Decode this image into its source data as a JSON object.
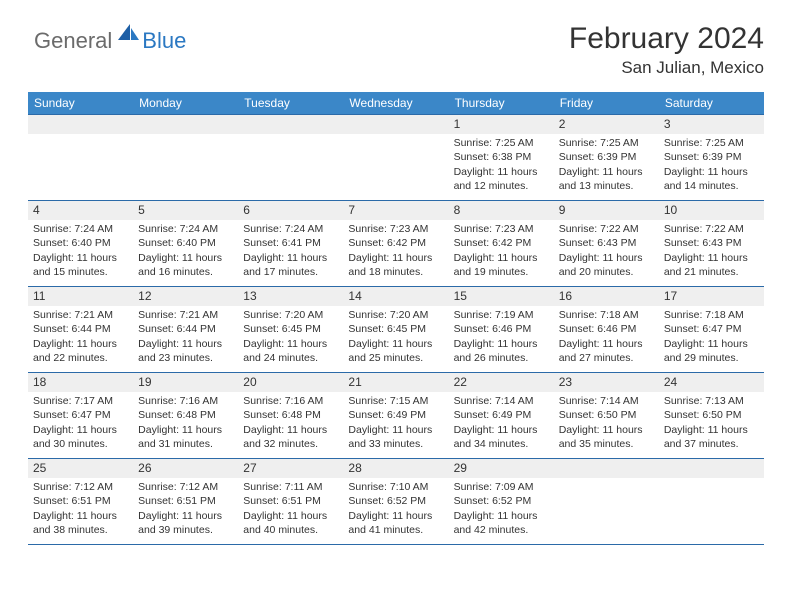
{
  "colors": {
    "header_bg": "#3b87c8",
    "header_text": "#ffffff",
    "row_divider": "#2b6aa8",
    "daynum_bg": "#efefef",
    "body_text": "#333333",
    "logo_gray": "#6b6b6b",
    "logo_blue": "#2b78c2"
  },
  "logo": {
    "part1": "General",
    "part2": "Blue"
  },
  "title": "February 2024",
  "location": "San Julian, Mexico",
  "weekdays": [
    "Sunday",
    "Monday",
    "Tuesday",
    "Wednesday",
    "Thursday",
    "Friday",
    "Saturday"
  ],
  "weeks": [
    [
      null,
      null,
      null,
      null,
      {
        "n": "1",
        "sunrise": "Sunrise: 7:25 AM",
        "sunset": "Sunset: 6:38 PM",
        "day1": "Daylight: 11 hours",
        "day2": "and 12 minutes."
      },
      {
        "n": "2",
        "sunrise": "Sunrise: 7:25 AM",
        "sunset": "Sunset: 6:39 PM",
        "day1": "Daylight: 11 hours",
        "day2": "and 13 minutes."
      },
      {
        "n": "3",
        "sunrise": "Sunrise: 7:25 AM",
        "sunset": "Sunset: 6:39 PM",
        "day1": "Daylight: 11 hours",
        "day2": "and 14 minutes."
      }
    ],
    [
      {
        "n": "4",
        "sunrise": "Sunrise: 7:24 AM",
        "sunset": "Sunset: 6:40 PM",
        "day1": "Daylight: 11 hours",
        "day2": "and 15 minutes."
      },
      {
        "n": "5",
        "sunrise": "Sunrise: 7:24 AM",
        "sunset": "Sunset: 6:40 PM",
        "day1": "Daylight: 11 hours",
        "day2": "and 16 minutes."
      },
      {
        "n": "6",
        "sunrise": "Sunrise: 7:24 AM",
        "sunset": "Sunset: 6:41 PM",
        "day1": "Daylight: 11 hours",
        "day2": "and 17 minutes."
      },
      {
        "n": "7",
        "sunrise": "Sunrise: 7:23 AM",
        "sunset": "Sunset: 6:42 PM",
        "day1": "Daylight: 11 hours",
        "day2": "and 18 minutes."
      },
      {
        "n": "8",
        "sunrise": "Sunrise: 7:23 AM",
        "sunset": "Sunset: 6:42 PM",
        "day1": "Daylight: 11 hours",
        "day2": "and 19 minutes."
      },
      {
        "n": "9",
        "sunrise": "Sunrise: 7:22 AM",
        "sunset": "Sunset: 6:43 PM",
        "day1": "Daylight: 11 hours",
        "day2": "and 20 minutes."
      },
      {
        "n": "10",
        "sunrise": "Sunrise: 7:22 AM",
        "sunset": "Sunset: 6:43 PM",
        "day1": "Daylight: 11 hours",
        "day2": "and 21 minutes."
      }
    ],
    [
      {
        "n": "11",
        "sunrise": "Sunrise: 7:21 AM",
        "sunset": "Sunset: 6:44 PM",
        "day1": "Daylight: 11 hours",
        "day2": "and 22 minutes."
      },
      {
        "n": "12",
        "sunrise": "Sunrise: 7:21 AM",
        "sunset": "Sunset: 6:44 PM",
        "day1": "Daylight: 11 hours",
        "day2": "and 23 minutes."
      },
      {
        "n": "13",
        "sunrise": "Sunrise: 7:20 AM",
        "sunset": "Sunset: 6:45 PM",
        "day1": "Daylight: 11 hours",
        "day2": "and 24 minutes."
      },
      {
        "n": "14",
        "sunrise": "Sunrise: 7:20 AM",
        "sunset": "Sunset: 6:45 PM",
        "day1": "Daylight: 11 hours",
        "day2": "and 25 minutes."
      },
      {
        "n": "15",
        "sunrise": "Sunrise: 7:19 AM",
        "sunset": "Sunset: 6:46 PM",
        "day1": "Daylight: 11 hours",
        "day2": "and 26 minutes."
      },
      {
        "n": "16",
        "sunrise": "Sunrise: 7:18 AM",
        "sunset": "Sunset: 6:46 PM",
        "day1": "Daylight: 11 hours",
        "day2": "and 27 minutes."
      },
      {
        "n": "17",
        "sunrise": "Sunrise: 7:18 AM",
        "sunset": "Sunset: 6:47 PM",
        "day1": "Daylight: 11 hours",
        "day2": "and 29 minutes."
      }
    ],
    [
      {
        "n": "18",
        "sunrise": "Sunrise: 7:17 AM",
        "sunset": "Sunset: 6:47 PM",
        "day1": "Daylight: 11 hours",
        "day2": "and 30 minutes."
      },
      {
        "n": "19",
        "sunrise": "Sunrise: 7:16 AM",
        "sunset": "Sunset: 6:48 PM",
        "day1": "Daylight: 11 hours",
        "day2": "and 31 minutes."
      },
      {
        "n": "20",
        "sunrise": "Sunrise: 7:16 AM",
        "sunset": "Sunset: 6:48 PM",
        "day1": "Daylight: 11 hours",
        "day2": "and 32 minutes."
      },
      {
        "n": "21",
        "sunrise": "Sunrise: 7:15 AM",
        "sunset": "Sunset: 6:49 PM",
        "day1": "Daylight: 11 hours",
        "day2": "and 33 minutes."
      },
      {
        "n": "22",
        "sunrise": "Sunrise: 7:14 AM",
        "sunset": "Sunset: 6:49 PM",
        "day1": "Daylight: 11 hours",
        "day2": "and 34 minutes."
      },
      {
        "n": "23",
        "sunrise": "Sunrise: 7:14 AM",
        "sunset": "Sunset: 6:50 PM",
        "day1": "Daylight: 11 hours",
        "day2": "and 35 minutes."
      },
      {
        "n": "24",
        "sunrise": "Sunrise: 7:13 AM",
        "sunset": "Sunset: 6:50 PM",
        "day1": "Daylight: 11 hours",
        "day2": "and 37 minutes."
      }
    ],
    [
      {
        "n": "25",
        "sunrise": "Sunrise: 7:12 AM",
        "sunset": "Sunset: 6:51 PM",
        "day1": "Daylight: 11 hours",
        "day2": "and 38 minutes."
      },
      {
        "n": "26",
        "sunrise": "Sunrise: 7:12 AM",
        "sunset": "Sunset: 6:51 PM",
        "day1": "Daylight: 11 hours",
        "day2": "and 39 minutes."
      },
      {
        "n": "27",
        "sunrise": "Sunrise: 7:11 AM",
        "sunset": "Sunset: 6:51 PM",
        "day1": "Daylight: 11 hours",
        "day2": "and 40 minutes."
      },
      {
        "n": "28",
        "sunrise": "Sunrise: 7:10 AM",
        "sunset": "Sunset: 6:52 PM",
        "day1": "Daylight: 11 hours",
        "day2": "and 41 minutes."
      },
      {
        "n": "29",
        "sunrise": "Sunrise: 7:09 AM",
        "sunset": "Sunset: 6:52 PM",
        "day1": "Daylight: 11 hours",
        "day2": "and 42 minutes."
      },
      null,
      null
    ]
  ]
}
